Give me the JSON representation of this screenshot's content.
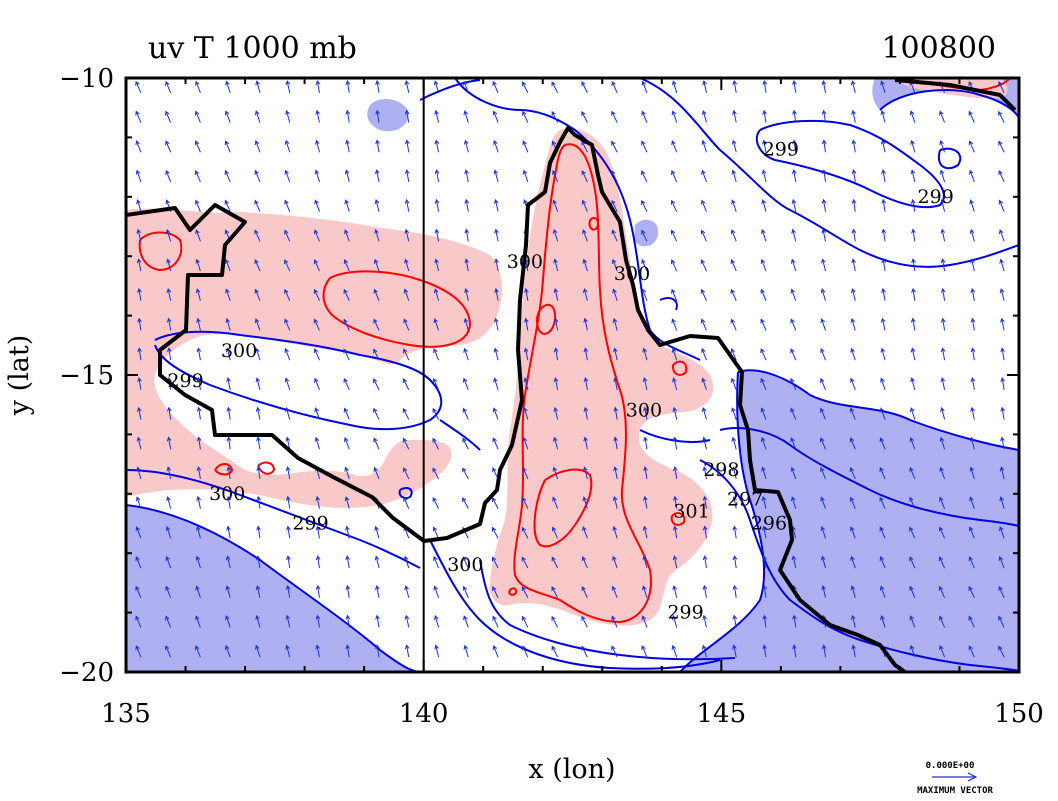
{
  "chart_data": {
    "type": "contour",
    "title": "uv T 1000 mb",
    "date_label": "100800",
    "xlabel": "x (lon)",
    "ylabel": "y (lat)",
    "xlim": [
      135,
      150
    ],
    "ylim": [
      -20,
      -10
    ],
    "x_ticks": [
      135,
      140,
      145,
      150
    ],
    "x_tick_labels": [
      "135",
      "140",
      "145",
      "150"
    ],
    "y_ticks": [
      -10,
      -15,
      -20
    ],
    "y_tick_labels": [
      "−10",
      "−15",
      "−20"
    ],
    "reference_longitude": 140,
    "contour_levels": [
      296,
      297,
      298,
      299,
      300,
      301
    ],
    "contour_labels": [
      {
        "text": "300",
        "lon": 136.9,
        "lat": -14.6,
        "color": "#000"
      },
      {
        "text": "299",
        "lon": 136.0,
        "lat": -15.1,
        "color": "#000"
      },
      {
        "text": "300",
        "lon": 136.7,
        "lat": -17.0,
        "color": "#000"
      },
      {
        "text": "299",
        "lon": 138.1,
        "lat": -17.5,
        "color": "#000"
      },
      {
        "text": "300",
        "lon": 140.7,
        "lat": -18.2,
        "color": "#000"
      },
      {
        "text": "300",
        "lon": 141.7,
        "lat": -13.1,
        "color": "#000"
      },
      {
        "text": "299",
        "lon": 146.0,
        "lat": -11.2,
        "color": "#000"
      },
      {
        "text": "299",
        "lon": 148.6,
        "lat": -12.0,
        "color": "#000"
      },
      {
        "text": "300",
        "lon": 143.5,
        "lat": -13.3,
        "color": "#000"
      },
      {
        "text": "300",
        "lon": 143.7,
        "lat": -15.6,
        "color": "#000"
      },
      {
        "text": "298",
        "lon": 145.0,
        "lat": -16.6,
        "color": "#000"
      },
      {
        "text": "297",
        "lon": 145.4,
        "lat": -17.1,
        "color": "#000"
      },
      {
        "text": "296",
        "lon": 145.8,
        "lat": -17.5,
        "color": "#000"
      },
      {
        "text": "301",
        "lon": 144.5,
        "lat": -17.3,
        "color": "#000"
      },
      {
        "text": "299",
        "lon": 144.4,
        "lat": -19.0,
        "color": "#000"
      }
    ],
    "vector_legend": {
      "value": "0.000E+00",
      "caption": "MAXIMUM VECTOR"
    },
    "colors": {
      "warm_fill": "#f9c8c8",
      "cold_fill": "#aeb0f2",
      "warm_contour": "#ff0000",
      "cold_contour": "#0000e0",
      "coastline": "#000000",
      "vector": "#1a33d8"
    }
  }
}
